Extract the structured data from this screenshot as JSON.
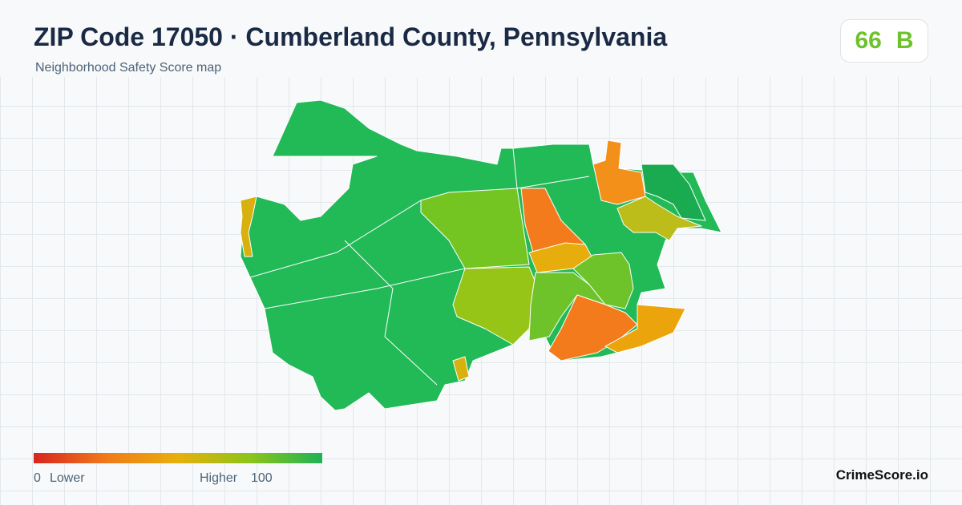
{
  "header": {
    "title": "ZIP Code 17050 · Cumberland County, Pennsylvania",
    "subtitle": "Neighborhood Safety Score map"
  },
  "score": {
    "value": 66,
    "grade": "B"
  },
  "legend": {
    "min": 0,
    "low_label": "Lower",
    "high_label": "Higher",
    "max": 100
  },
  "brand": "CrimeScore.io"
}
